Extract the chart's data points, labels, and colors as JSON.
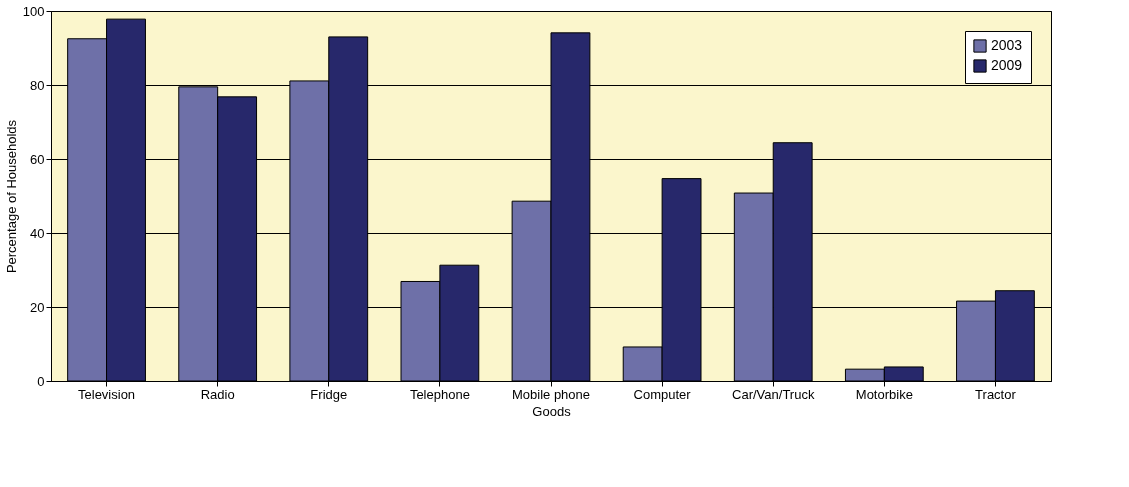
{
  "chart_data": {
    "type": "bar",
    "xlabel": "Goods",
    "ylabel": "Percentage of Households",
    "categories": [
      "Television",
      "Radio",
      "Fridge",
      "Telephone",
      "Mobile phone",
      "Computer",
      "Car/Van/Truck",
      "Motorbike",
      "Tractor"
    ],
    "series": [
      {
        "name": "2003",
        "color": "#6e70a8",
        "values": [
          92.5,
          79.5,
          81.1,
          26.9,
          48.6,
          9.2,
          50.8,
          3.2,
          21.6
        ]
      },
      {
        "name": "2009",
        "color": "#27286b",
        "values": [
          97.8,
          76.8,
          93.0,
          31.3,
          94.1,
          54.7,
          64.4,
          3.8,
          24.4
        ]
      }
    ],
    "ylim": [
      0,
      100
    ],
    "yticks": [
      0,
      20,
      40,
      60,
      80,
      100
    ],
    "grid": "y",
    "legend": "top right"
  }
}
